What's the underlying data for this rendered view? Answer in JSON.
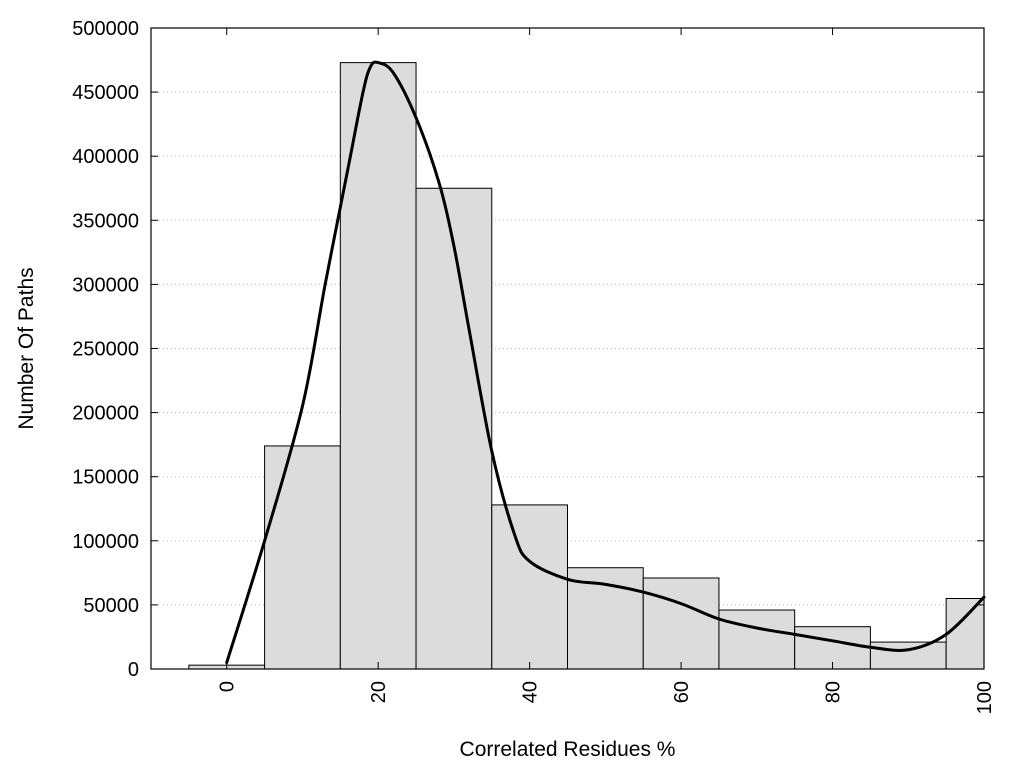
{
  "chart_data": {
    "type": "bar",
    "xlabel": "Correlated Residues %",
    "ylabel": "Number Of Paths",
    "xlim": [
      -10,
      100
    ],
    "ylim": [
      0,
      500000
    ],
    "bin_width": 10,
    "grid": "horizontal-dotted",
    "x": [
      0,
      10,
      20,
      30,
      40,
      50,
      60,
      70,
      80,
      90,
      100
    ],
    "values": [
      3000,
      174000,
      473000,
      375000,
      128000,
      79000,
      71000,
      46000,
      33000,
      21000,
      55000
    ],
    "bar_color": "#dcdcdc",
    "curve": {
      "x": [
        0,
        5,
        10,
        13,
        16,
        18,
        19,
        20,
        22,
        25,
        28,
        30,
        32,
        35,
        38,
        40,
        45,
        50,
        55,
        60,
        65,
        70,
        75,
        80,
        85,
        90,
        95,
        100
      ],
      "y": [
        5000,
        100000,
        205000,
        300000,
        390000,
        450000,
        470000,
        473000,
        465000,
        430000,
        380000,
        330000,
        265000,
        170000,
        105000,
        84000,
        70000,
        66000,
        60000,
        51000,
        39000,
        32000,
        27000,
        22000,
        17000,
        15000,
        27000,
        56000
      ]
    },
    "y_ticks": [
      0,
      50000,
      100000,
      150000,
      200000,
      250000,
      300000,
      350000,
      400000,
      450000,
      500000
    ],
    "x_ticks": [
      0,
      20,
      40,
      60,
      80,
      100
    ]
  }
}
